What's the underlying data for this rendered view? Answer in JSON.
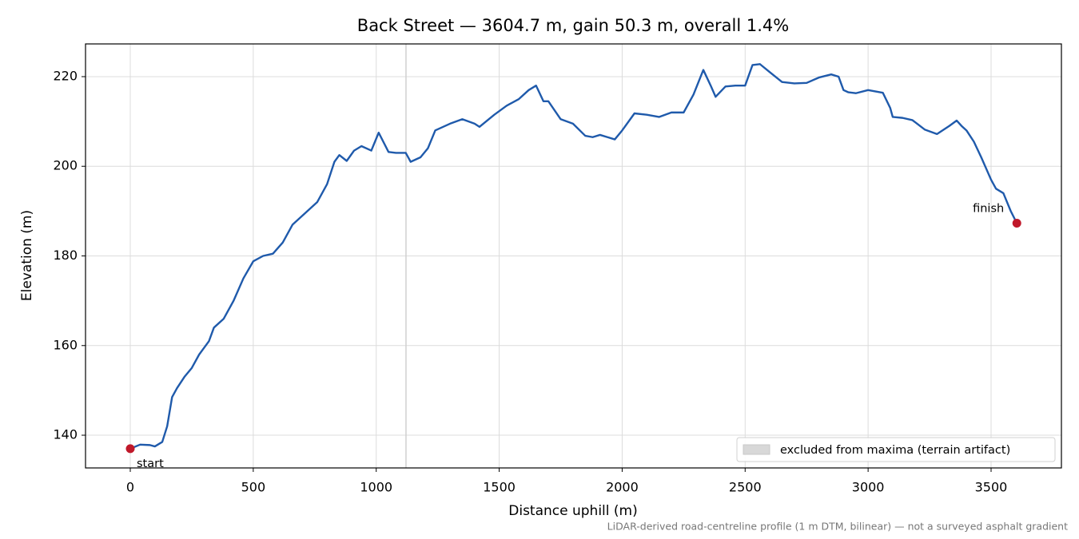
{
  "chart_data": {
    "type": "line",
    "title": "Back Street — 3604.7 m, gain 50.3 m, overall 1.4%",
    "x_label": "Distance uphill (m)",
    "y_label": "Elevation (m)",
    "footnote": "LiDAR-derived road-centreline profile (1 m DTM, bilinear) — not a surveyed asphalt gradient",
    "x": [
      0,
      40,
      80,
      100,
      130,
      150,
      170,
      190,
      220,
      250,
      280,
      320,
      340,
      380,
      420,
      460,
      500,
      540,
      580,
      620,
      660,
      700,
      760,
      800,
      830,
      850,
      880,
      910,
      940,
      980,
      1010,
      1050,
      1080,
      1120,
      1140,
      1180,
      1210,
      1240,
      1300,
      1350,
      1400,
      1420,
      1480,
      1530,
      1580,
      1620,
      1650,
      1680,
      1700,
      1750,
      1800,
      1850,
      1880,
      1910,
      1940,
      1970,
      2000,
      2050,
      2100,
      2150,
      2200,
      2250,
      2290,
      2330,
      2360,
      2380,
      2420,
      2460,
      2500,
      2530,
      2560,
      2600,
      2650,
      2700,
      2750,
      2800,
      2850,
      2880,
      2900,
      2920,
      2950,
      3000,
      3060,
      3090,
      3100,
      3140,
      3180,
      3230,
      3280,
      3330,
      3360,
      3380,
      3400,
      3430,
      3460,
      3500,
      3520,
      3550,
      3580,
      3604.7
    ],
    "series": [
      {
        "color": "#1f5aab",
        "values": [
          137.0,
          137.9,
          137.8,
          137.5,
          138.5,
          142,
          148.5,
          150.5,
          153,
          155,
          158,
          161,
          164,
          166,
          170,
          175,
          178.8,
          180,
          180.5,
          183,
          187,
          189,
          192,
          196,
          201,
          202.5,
          201.2,
          203.5,
          204.5,
          203.5,
          207.5,
          203.2,
          203,
          203,
          201,
          202,
          204,
          208,
          209.5,
          210.5,
          209.5,
          208.8,
          211.5,
          213.5,
          215,
          217,
          218,
          214.5,
          214.5,
          210.5,
          209.5,
          206.8,
          206.5,
          207,
          206.5,
          206,
          208,
          211.8,
          211.5,
          211,
          212,
          212,
          216,
          221.5,
          218,
          215.5,
          217.8,
          218,
          218,
          222.6,
          222.8,
          221,
          218.8,
          218.5,
          218.6,
          219.8,
          220.5,
          220,
          217,
          216.5,
          216.3,
          217,
          216.4,
          213,
          211,
          210.8,
          210.3,
          208.2,
          207.2,
          209,
          210.2,
          209,
          208,
          205.5,
          202,
          197,
          195,
          194,
          190,
          187.3
        ]
      }
    ],
    "markers": {
      "x": [
        0,
        3604.7
      ],
      "y": [
        137.0,
        187.3
      ],
      "labels": [
        "start",
        "finish"
      ],
      "color": "#c0182a"
    },
    "excluded_span": [
      1118,
      1124
    ],
    "excluded_label": "excluded from maxima (terrain artifact)",
    "excluded_color": "#cfcfcf",
    "xlim": [
      -182,
      3786
    ],
    "ylim": [
      132.7,
      227.3
    ],
    "xticks": [
      0,
      500,
      1000,
      1500,
      2000,
      2500,
      3000,
      3500
    ],
    "yticks": [
      140,
      160,
      180,
      200,
      220
    ],
    "grid": true,
    "legend": "lower right"
  }
}
